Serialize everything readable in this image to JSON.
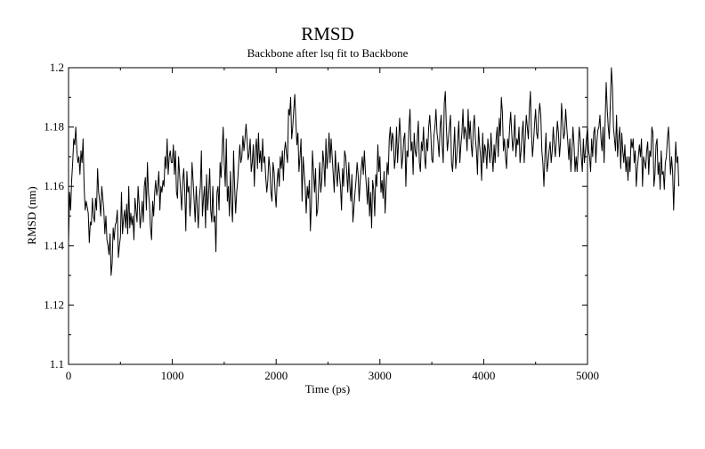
{
  "chart_data": {
    "type": "line",
    "title": "RMSD",
    "subtitle": "Backbone after lsq fit to Backbone",
    "xlabel": "Time (ps)",
    "ylabel": "RMSD (nm)",
    "xlim": [
      0,
      5000
    ],
    "ylim": [
      1.1,
      1.2
    ],
    "x_ticks": [
      "0",
      "1000",
      "2000",
      "3000",
      "4000",
      "5000"
    ],
    "y_ticks": [
      "1.1",
      "1.12",
      "1.14",
      "1.16",
      "1.18",
      "1.2"
    ],
    "grid": false,
    "legend": "none",
    "line_color": "#000000",
    "series": [
      {
        "x_start": 0,
        "x_step": 10,
        "values": [
          1.141,
          1.158,
          1.152,
          1.162,
          1.168,
          1.176,
          1.174,
          1.18,
          1.172,
          1.168,
          1.17,
          1.164,
          1.172,
          1.168,
          1.176,
          1.16,
          1.152,
          1.155,
          1.153,
          1.151,
          1.141,
          1.148,
          1.147,
          1.156,
          1.15,
          1.148,
          1.156,
          1.152,
          1.166,
          1.158,
          1.155,
          1.15,
          1.16,
          1.156,
          1.152,
          1.144,
          1.15,
          1.142,
          1.14,
          1.137,
          1.144,
          1.13,
          1.134,
          1.146,
          1.142,
          1.147,
          1.148,
          1.152,
          1.136,
          1.14,
          1.143,
          1.158,
          1.144,
          1.149,
          1.152,
          1.146,
          1.154,
          1.144,
          1.16,
          1.146,
          1.151,
          1.147,
          1.15,
          1.142,
          1.156,
          1.152,
          1.148,
          1.16,
          1.154,
          1.146,
          1.15,
          1.155,
          1.148,
          1.16,
          1.163,
          1.152,
          1.168,
          1.158,
          1.154,
          1.146,
          1.142,
          1.155,
          1.15,
          1.158,
          1.162,
          1.157,
          1.16,
          1.165,
          1.152,
          1.16,
          1.158,
          1.162,
          1.16,
          1.17,
          1.166,
          1.176,
          1.164,
          1.17,
          1.172,
          1.168,
          1.168,
          1.174,
          1.164,
          1.172,
          1.158,
          1.156,
          1.17,
          1.164,
          1.158,
          1.152,
          1.162,
          1.166,
          1.158,
          1.145,
          1.165,
          1.158,
          1.16,
          1.15,
          1.156,
          1.168,
          1.162,
          1.155,
          1.148,
          1.16,
          1.153,
          1.146,
          1.156,
          1.16,
          1.172,
          1.15,
          1.156,
          1.16,
          1.146,
          1.164,
          1.152,
          1.158,
          1.166,
          1.152,
          1.148,
          1.16,
          1.148,
          1.15,
          1.138,
          1.158,
          1.16,
          1.152,
          1.168,
          1.163,
          1.172,
          1.18,
          1.168,
          1.16,
          1.176,
          1.155,
          1.16,
          1.15,
          1.165,
          1.154,
          1.148,
          1.172,
          1.16,
          1.151,
          1.158,
          1.162,
          1.168,
          1.174,
          1.168,
          1.17,
          1.177,
          1.172,
          1.176,
          1.181,
          1.176,
          1.169,
          1.171,
          1.176,
          1.165,
          1.168,
          1.174,
          1.16,
          1.172,
          1.176,
          1.166,
          1.178,
          1.168,
          1.172,
          1.165,
          1.176,
          1.168,
          1.17,
          1.163,
          1.158,
          1.162,
          1.17,
          1.166,
          1.158,
          1.155,
          1.168,
          1.165,
          1.158,
          1.153,
          1.162,
          1.166,
          1.16,
          1.17,
          1.166,
          1.172,
          1.162,
          1.172,
          1.175,
          1.171,
          1.168,
          1.186,
          1.184,
          1.19,
          1.176,
          1.18,
          1.186,
          1.191,
          1.182,
          1.174,
          1.178,
          1.165,
          1.17,
          1.176,
          1.155,
          1.17,
          1.165,
          1.16,
          1.151,
          1.16,
          1.156,
          1.162,
          1.145,
          1.154,
          1.172,
          1.165,
          1.158,
          1.166,
          1.15,
          1.152,
          1.16,
          1.168,
          1.158,
          1.162,
          1.172,
          1.168,
          1.16,
          1.176,
          1.166,
          1.17,
          1.178,
          1.168,
          1.176,
          1.17,
          1.164,
          1.158,
          1.172,
          1.165,
          1.16,
          1.168,
          1.164,
          1.16,
          1.152,
          1.166,
          1.16,
          1.172,
          1.17,
          1.165,
          1.158,
          1.168,
          1.16,
          1.155,
          1.164,
          1.148,
          1.153,
          1.158,
          1.162,
          1.168,
          1.164,
          1.155,
          1.162,
          1.166,
          1.17,
          1.164,
          1.172,
          1.165,
          1.16,
          1.154,
          1.163,
          1.15,
          1.158,
          1.146,
          1.162,
          1.159,
          1.15,
          1.164,
          1.16,
          1.174,
          1.165,
          1.17,
          1.158,
          1.162,
          1.156,
          1.165,
          1.151,
          1.16,
          1.168,
          1.164,
          1.176,
          1.18,
          1.172,
          1.178,
          1.176,
          1.166,
          1.17,
          1.18,
          1.168,
          1.175,
          1.183,
          1.176,
          1.166,
          1.17,
          1.176,
          1.178,
          1.16,
          1.172,
          1.17,
          1.18,
          1.186,
          1.172,
          1.175,
          1.164,
          1.178,
          1.172,
          1.17,
          1.176,
          1.182,
          1.168,
          1.165,
          1.175,
          1.172,
          1.18,
          1.17,
          1.166,
          1.176,
          1.172,
          1.18,
          1.184,
          1.178,
          1.169,
          1.168,
          1.177,
          1.18,
          1.186,
          1.178,
          1.175,
          1.17,
          1.18,
          1.184,
          1.174,
          1.168,
          1.188,
          1.192,
          1.18,
          1.172,
          1.176,
          1.18,
          1.184,
          1.168,
          1.165,
          1.172,
          1.18,
          1.166,
          1.17,
          1.176,
          1.182,
          1.168,
          1.174,
          1.178,
          1.186,
          1.176,
          1.18,
          1.178,
          1.172,
          1.186,
          1.176,
          1.182,
          1.174,
          1.17,
          1.18,
          1.184,
          1.176,
          1.172,
          1.164,
          1.18,
          1.174,
          1.17,
          1.162,
          1.178,
          1.168,
          1.174,
          1.172,
          1.166,
          1.176,
          1.172,
          1.168,
          1.178,
          1.171,
          1.165,
          1.174,
          1.168,
          1.176,
          1.18,
          1.17,
          1.183,
          1.177,
          1.19,
          1.185,
          1.172,
          1.176,
          1.17,
          1.166,
          1.176,
          1.173,
          1.18,
          1.185,
          1.178,
          1.172,
          1.176,
          1.184,
          1.17,
          1.176,
          1.174,
          1.18,
          1.168,
          1.172,
          1.178,
          1.182,
          1.168,
          1.176,
          1.184,
          1.18,
          1.176,
          1.186,
          1.192,
          1.178,
          1.17,
          1.175,
          1.181,
          1.186,
          1.178,
          1.176,
          1.184,
          1.188,
          1.184,
          1.172,
          1.168,
          1.16,
          1.17,
          1.178,
          1.165,
          1.168,
          1.172,
          1.175,
          1.168,
          1.172,
          1.18,
          1.174,
          1.17,
          1.176,
          1.182,
          1.178,
          1.17,
          1.175,
          1.188,
          1.182,
          1.176,
          1.178,
          1.186,
          1.18,
          1.175,
          1.169,
          1.176,
          1.165,
          1.172,
          1.18,
          1.174,
          1.165,
          1.17,
          1.165,
          1.172,
          1.18,
          1.176,
          1.17,
          1.165,
          1.176,
          1.168,
          1.172,
          1.176,
          1.18,
          1.172,
          1.17,
          1.165,
          1.176,
          1.17,
          1.178,
          1.18,
          1.168,
          1.175,
          1.179,
          1.18,
          1.184,
          1.176,
          1.172,
          1.18,
          1.168,
          1.182,
          1.195,
          1.186,
          1.18,
          1.176,
          1.188,
          1.2,
          1.194,
          1.18,
          1.176,
          1.172,
          1.184,
          1.17,
          1.176,
          1.18,
          1.166,
          1.178,
          1.172,
          1.168,
          1.174,
          1.165,
          1.17,
          1.162,
          1.17,
          1.165,
          1.176,
          1.173,
          1.176,
          1.168,
          1.172,
          1.16,
          1.166,
          1.17,
          1.174,
          1.17,
          1.176,
          1.16,
          1.17,
          1.168,
          1.166,
          1.172,
          1.175,
          1.164,
          1.172,
          1.17,
          1.18,
          1.178,
          1.16,
          1.164,
          1.174,
          1.176,
          1.164,
          1.168,
          1.159,
          1.172,
          1.164,
          1.165,
          1.159,
          1.168,
          1.17,
          1.176,
          1.18,
          1.172,
          1.164,
          1.17,
          1.165,
          1.152,
          1.164,
          1.175,
          1.168,
          1.17,
          1.16
        ]
      }
    ]
  }
}
